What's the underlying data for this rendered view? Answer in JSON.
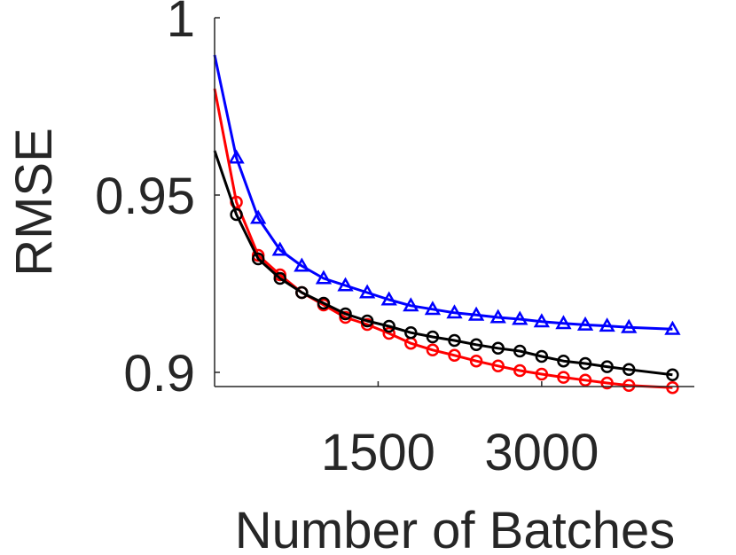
{
  "chart_data": {
    "type": "line",
    "title": "",
    "xlabel": "Number of Batches",
    "ylabel": "RMSE",
    "xlim": [
      0,
      4400
    ],
    "ylim": [
      0.896,
      1.0
    ],
    "xticks": [
      1500,
      3000
    ],
    "xtick_labels": [
      "1500",
      "3000"
    ],
    "yticks": [
      0.9,
      0.95,
      1.0
    ],
    "ytick_labels": [
      "0.9",
      "0.95",
      "1"
    ],
    "grid": false,
    "x": [
      0,
      200,
      400,
      600,
      800,
      1000,
      1200,
      1400,
      1600,
      1800,
      2000,
      2200,
      2400,
      2600,
      2800,
      3000,
      3200,
      3400,
      3600,
      3800,
      4200
    ],
    "series": [
      {
        "color": "#0000ff",
        "marker": "triangle",
        "values": [
          0.9895,
          0.9605,
          0.9435,
          0.9345,
          0.93,
          0.9265,
          0.9245,
          0.9225,
          0.9205,
          0.9188,
          0.9178,
          0.9168,
          0.9162,
          0.9155,
          0.915,
          0.9143,
          0.9138,
          0.9134,
          0.9131,
          0.9127,
          0.9122
        ]
      },
      {
        "color": "#ff0000",
        "marker": "circle",
        "values": [
          0.98,
          0.948,
          0.933,
          0.9275,
          0.9225,
          0.919,
          0.9155,
          0.9135,
          0.911,
          0.9082,
          0.9063,
          0.9048,
          0.9032,
          0.9018,
          0.9005,
          0.8995,
          0.8986,
          0.8978,
          0.897,
          0.8963,
          0.8957
        ]
      },
      {
        "color": "#000000",
        "marker": "circle",
        "values": [
          0.9625,
          0.9445,
          0.932,
          0.9265,
          0.9225,
          0.9195,
          0.9165,
          0.9145,
          0.913,
          0.9112,
          0.91,
          0.909,
          0.9078,
          0.9068,
          0.906,
          0.9045,
          0.9032,
          0.9025,
          0.9016,
          0.9008,
          0.8993
        ]
      }
    ]
  }
}
